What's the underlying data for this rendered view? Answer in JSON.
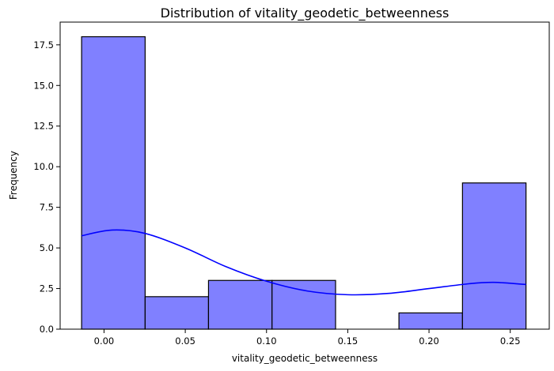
{
  "chart_data": {
    "type": "bar",
    "title": "Distribution of vitality_geodetic_betweenness",
    "xlabel": "vitality_geodetic_betweenness",
    "ylabel": "Frequency",
    "xlim": [
      -0.027,
      0.274
    ],
    "ylim": [
      0,
      18.9
    ],
    "xticks": [
      0.0,
      0.05,
      0.1,
      0.15,
      0.2,
      0.25
    ],
    "xtick_labels": [
      "0.00",
      "0.05",
      "0.10",
      "0.15",
      "0.20",
      "0.25"
    ],
    "yticks": [
      0.0,
      2.5,
      5.0,
      7.5,
      10.0,
      12.5,
      15.0,
      17.5
    ],
    "ytick_labels": [
      "0.0",
      "2.5",
      "5.0",
      "7.5",
      "10.0",
      "12.5",
      "15.0",
      "17.5"
    ],
    "grid": false,
    "bins": [
      {
        "start": -0.0138,
        "end": 0.0253,
        "count": 18
      },
      {
        "start": 0.0253,
        "end": 0.0643,
        "count": 2
      },
      {
        "start": 0.0643,
        "end": 0.1034,
        "count": 3
      },
      {
        "start": 0.1034,
        "end": 0.1425,
        "count": 3
      },
      {
        "start": 0.1425,
        "end": 0.1815,
        "count": 0
      },
      {
        "start": 0.1815,
        "end": 0.2206,
        "count": 1
      },
      {
        "start": 0.2206,
        "end": 0.2597,
        "count": 9
      }
    ],
    "kde": {
      "x": [
        -0.0138,
        0.005,
        0.025,
        0.05,
        0.075,
        0.1,
        0.125,
        0.15,
        0.175,
        0.2,
        0.225,
        0.24,
        0.2597
      ],
      "y": [
        5.75,
        6.1,
        5.9,
        5.0,
        3.85,
        2.95,
        2.35,
        2.12,
        2.2,
        2.5,
        2.8,
        2.88,
        2.75
      ]
    },
    "colors": {
      "bar_fill": "#8080ff",
      "bar_edge": "#000000",
      "kde_line": "#0000ff"
    }
  }
}
